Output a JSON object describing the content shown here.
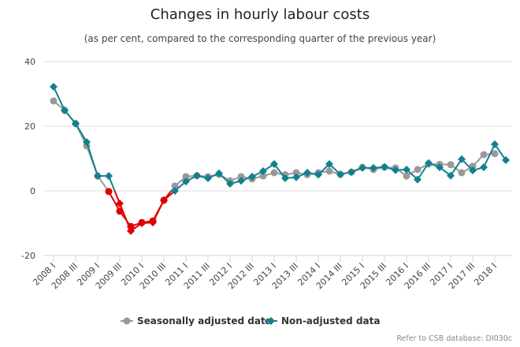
{
  "chart_data": {
    "type": "line",
    "title": "Changes in hourly labour costs",
    "subtitle": "(as per cent, compared to the corresponding quarter of the previous year)",
    "credit": "Refer to CSB database: DI030c",
    "x": [
      "2008 I",
      "2008 II",
      "2008 III",
      "2008 IV",
      "2009 I",
      "2009 II",
      "2009 III",
      "2009 IV",
      "2010 I",
      "2010 II",
      "2010 III",
      "2010 IV",
      "2011 I",
      "2011 II",
      "2011 III",
      "2011 IV",
      "2012 I",
      "2012 II",
      "2012 III",
      "2012 IV",
      "2013 I",
      "2013 II",
      "2013 III",
      "2013 IV",
      "2014 I",
      "2014 II",
      "2014 III",
      "2014 IV",
      "2015 I",
      "2015 II",
      "2015 III",
      "2015 IV",
      "2016 I",
      "2016 II",
      "2016 III",
      "2016 IV",
      "2017 I",
      "2017 II",
      "2017 III",
      "2017 IV",
      "2018 I",
      "2018 II"
    ],
    "xtick_labels": [
      "2008 I",
      "2008 III",
      "2009 I",
      "2009 III",
      "2010 I",
      "2010 III",
      "2011 I",
      "2011 III",
      "2012 I",
      "2012 III",
      "2013 I",
      "2013 III",
      "2014 I",
      "2014 III",
      "2015 I",
      "2015 III",
      "2016 I",
      "2016 III",
      "2017 I",
      "2017 III",
      "2018 I"
    ],
    "yticks": [
      40,
      20,
      0,
      -20
    ],
    "ylim": [
      -20,
      40
    ],
    "grid": true,
    "legend_position": "bottom",
    "negative_color": "#e00000",
    "series": [
      {
        "name": "Seasonally adjusted data",
        "color": "#999999",
        "marker": "circle",
        "values": [
          27.8,
          24.9,
          20.8,
          13.9,
          4.6,
          -0.2,
          -6.3,
          -11.0,
          -9.8,
          -9.3,
          -2.9,
          1.5,
          4.4,
          4.7,
          4.4,
          5.1,
          3.1,
          4.4,
          3.7,
          4.6,
          5.6,
          5.0,
          5.6,
          5.0,
          5.6,
          6.1,
          5.1,
          5.8,
          7.3,
          6.6,
          7.3,
          7.1,
          4.6,
          6.6,
          8.3,
          8.2,
          8.1,
          5.6,
          7.6,
          11.2,
          11.5,
          null
        ]
      },
      {
        "name": "Non-adjusted data",
        "color": "#12808f",
        "marker": "diamond",
        "values": [
          32.2,
          24.9,
          20.8,
          15.1,
          4.6,
          4.6,
          -3.9,
          -12.4,
          -10.0,
          -9.8,
          -2.9,
          0.0,
          2.9,
          4.7,
          3.9,
          5.4,
          2.2,
          3.1,
          4.4,
          6.1,
          8.3,
          3.9,
          4.2,
          5.6,
          5.0,
          8.3,
          5.1,
          5.8,
          7.1,
          7.1,
          7.4,
          6.4,
          6.6,
          3.5,
          8.6,
          7.3,
          4.7,
          9.8,
          6.3,
          7.3,
          14.4,
          9.5
        ]
      }
    ]
  }
}
